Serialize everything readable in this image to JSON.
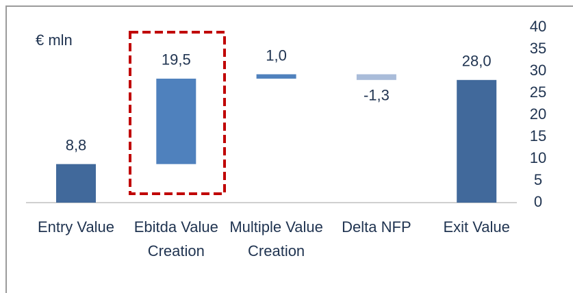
{
  "chart_data": {
    "type": "waterfall",
    "unit_label": "€ mln",
    "categories": [
      "Entry Value",
      "Ebitda Value Creation",
      "Multiple Value Creation",
      "Delta NFP",
      "Exit Value"
    ],
    "values": [
      8.8,
      19.5,
      1.0,
      -1.3,
      28.0
    ],
    "value_labels": [
      "8,8",
      "19,5",
      "1,0",
      "-1,3",
      "28,0"
    ],
    "measures": [
      "absolute",
      "relative",
      "relative",
      "relative",
      "total"
    ],
    "colors": [
      "#41699b",
      "#4f81bd",
      "#4f81bd",
      "#a9bcd9",
      "#41699b"
    ],
    "ylim": [
      0,
      40
    ],
    "yticks": [
      0,
      5,
      10,
      15,
      20,
      25,
      30,
      35,
      40
    ],
    "y_axis_side": "right",
    "grid": false
  }
}
